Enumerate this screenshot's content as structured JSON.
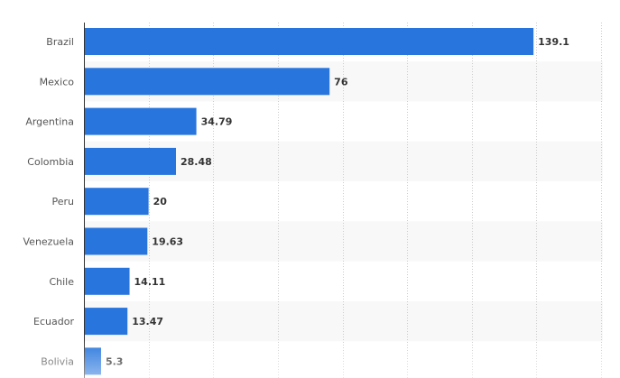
{
  "chart_data": {
    "type": "bar",
    "orientation": "horizontal",
    "categories": [
      "Brazil",
      "Mexico",
      "Argentina",
      "Colombia",
      "Peru",
      "Venezuela",
      "Chile",
      "Ecuador",
      "Bolivia"
    ],
    "values": [
      139.1,
      76,
      34.79,
      28.48,
      20,
      19.63,
      14.11,
      13.47,
      5.3
    ],
    "value_labels": [
      "139.1",
      "76",
      "34.79",
      "28.48",
      "20",
      "19.63",
      "14.11",
      "13.47",
      "5.3"
    ],
    "title": "",
    "xlabel": "",
    "ylabel": "",
    "xlim": [
      0,
      160
    ],
    "grid": true,
    "colors": {
      "bar": "#2876dd",
      "stripe": "#f8f8f8",
      "grid": "#cccccc"
    }
  }
}
